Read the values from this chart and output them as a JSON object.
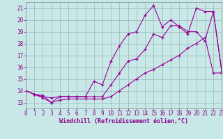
{
  "x_values": [
    0,
    1,
    2,
    3,
    4,
    5,
    6,
    7,
    8,
    9,
    10,
    11,
    12,
    13,
    14,
    15,
    16,
    17,
    18,
    19,
    20,
    21,
    22,
    23
  ],
  "line_max": [
    14.0,
    13.7,
    13.6,
    13.0,
    13.5,
    13.5,
    13.5,
    13.5,
    14.8,
    14.5,
    16.5,
    17.8,
    18.8,
    19.0,
    20.4,
    21.2,
    19.4,
    20.0,
    19.4,
    18.8,
    21.0,
    20.7,
    20.7,
    15.6
  ],
  "line_mean": [
    14.0,
    13.7,
    13.5,
    13.4,
    13.5,
    13.5,
    13.5,
    13.5,
    13.5,
    13.5,
    14.5,
    15.5,
    16.5,
    16.7,
    17.5,
    18.8,
    18.5,
    19.5,
    19.5,
    19.0,
    19.0,
    18.2,
    20.7,
    15.5
  ],
  "line_min": [
    14.0,
    13.7,
    13.4,
    13.0,
    13.2,
    13.3,
    13.3,
    13.3,
    13.3,
    13.3,
    13.5,
    14.0,
    14.5,
    15.0,
    15.5,
    15.8,
    16.2,
    16.6,
    17.0,
    17.6,
    18.0,
    18.5,
    15.5,
    15.5
  ],
  "bg_color": "#c8e8e8",
  "line_color": "#990099",
  "grid_color": "#9ab8b8",
  "xlabel": "Windchill (Refroidissement éolien,°C)",
  "xlim": [
    0,
    23
  ],
  "ylim": [
    12.5,
    21.5
  ],
  "yticks": [
    13,
    14,
    15,
    16,
    17,
    18,
    19,
    20,
    21
  ],
  "xticks": [
    0,
    1,
    2,
    3,
    4,
    5,
    6,
    7,
    8,
    9,
    10,
    11,
    12,
    13,
    14,
    15,
    16,
    17,
    18,
    19,
    20,
    21,
    22,
    23
  ],
  "label_fontsize": 6.0,
  "tick_fontsize": 5.5,
  "tick_color": "#880088",
  "label_color": "#880088"
}
